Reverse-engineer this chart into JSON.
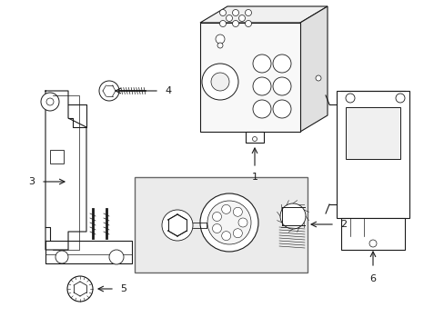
{
  "background_color": "#ffffff",
  "line_color": "#1a1a1a",
  "label_color": "#1a1a1a",
  "fig_width": 4.89,
  "fig_height": 3.6,
  "dpi": 100
}
